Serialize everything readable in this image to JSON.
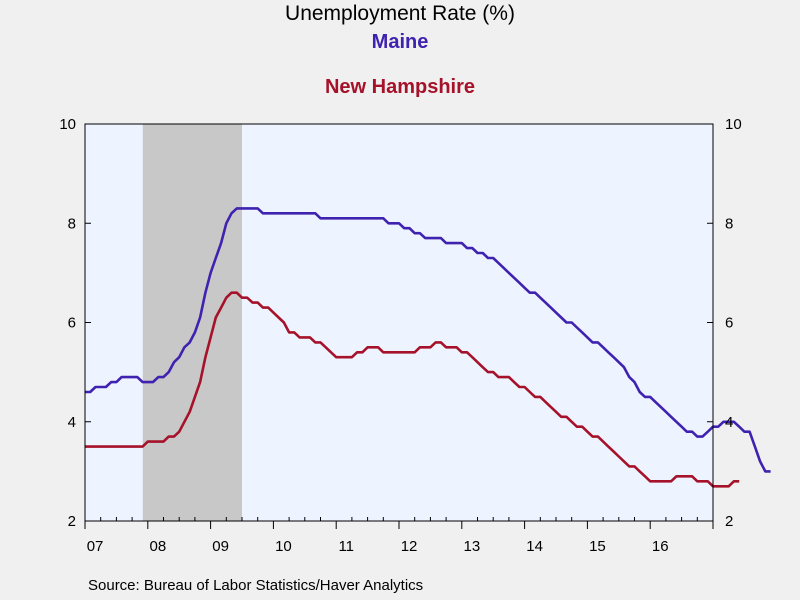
{
  "chart_data": {
    "type": "line",
    "title": "Unemployment Rate (%)",
    "source": "Source:  Bureau of Labor Statistics/Haver Analytics",
    "x_start_year": 2007,
    "x_range": [
      2007.0,
      2017.0
    ],
    "ylim": [
      2,
      10
    ],
    "y_ticks": [
      2,
      4,
      6,
      8,
      10
    ],
    "y_tick_labels": [
      "2",
      "4",
      "6",
      "8",
      "10"
    ],
    "x_tick_labels": [
      "07",
      "08",
      "09",
      "10",
      "11",
      "12",
      "13",
      "14",
      "15",
      "16"
    ],
    "grid": false,
    "recession_shading": {
      "start": 2007.92,
      "end": 2009.5,
      "color": "#c8c8c8"
    },
    "plot_background": "#eef4ff",
    "series": [
      {
        "name": "Maine",
        "color": "#3f22b0",
        "values": [
          4.6,
          4.6,
          4.7,
          4.7,
          4.7,
          4.8,
          4.8,
          4.9,
          4.9,
          4.9,
          4.9,
          4.8,
          4.8,
          4.8,
          4.9,
          4.9,
          5.0,
          5.2,
          5.3,
          5.5,
          5.6,
          5.8,
          6.1,
          6.6,
          7.0,
          7.3,
          7.6,
          8.0,
          8.2,
          8.3,
          8.3,
          8.3,
          8.3,
          8.3,
          8.2,
          8.2,
          8.2,
          8.2,
          8.2,
          8.2,
          8.2,
          8.2,
          8.2,
          8.2,
          8.2,
          8.1,
          8.1,
          8.1,
          8.1,
          8.1,
          8.1,
          8.1,
          8.1,
          8.1,
          8.1,
          8.1,
          8.1,
          8.1,
          8.0,
          8.0,
          8.0,
          7.9,
          7.9,
          7.8,
          7.8,
          7.7,
          7.7,
          7.7,
          7.7,
          7.6,
          7.6,
          7.6,
          7.6,
          7.5,
          7.5,
          7.4,
          7.4,
          7.3,
          7.3,
          7.2,
          7.1,
          7.0,
          6.9,
          6.8,
          6.7,
          6.6,
          6.6,
          6.5,
          6.4,
          6.3,
          6.2,
          6.1,
          6.0,
          6.0,
          5.9,
          5.8,
          5.7,
          5.6,
          5.6,
          5.5,
          5.4,
          5.3,
          5.2,
          5.1,
          4.9,
          4.8,
          4.6,
          4.5,
          4.5,
          4.4,
          4.3,
          4.2,
          4.1,
          4.0,
          3.9,
          3.8,
          3.8,
          3.7,
          3.7,
          3.8,
          3.9,
          3.9,
          4.0,
          4.0,
          4.0,
          3.9,
          3.8,
          3.8,
          3.5,
          3.2,
          3.0,
          3.0
        ]
      },
      {
        "name": "New Hampshire",
        "color": "#a5122a",
        "values": [
          3.5,
          3.5,
          3.5,
          3.5,
          3.5,
          3.5,
          3.5,
          3.5,
          3.5,
          3.5,
          3.5,
          3.5,
          3.6,
          3.6,
          3.6,
          3.6,
          3.7,
          3.7,
          3.8,
          4.0,
          4.2,
          4.5,
          4.8,
          5.3,
          5.7,
          6.1,
          6.3,
          6.5,
          6.6,
          6.6,
          6.5,
          6.5,
          6.4,
          6.4,
          6.3,
          6.3,
          6.2,
          6.1,
          6.0,
          5.8,
          5.8,
          5.7,
          5.7,
          5.7,
          5.6,
          5.6,
          5.5,
          5.4,
          5.3,
          5.3,
          5.3,
          5.3,
          5.4,
          5.4,
          5.5,
          5.5,
          5.5,
          5.4,
          5.4,
          5.4,
          5.4,
          5.4,
          5.4,
          5.4,
          5.5,
          5.5,
          5.5,
          5.6,
          5.6,
          5.5,
          5.5,
          5.5,
          5.4,
          5.4,
          5.3,
          5.2,
          5.1,
          5.0,
          5.0,
          4.9,
          4.9,
          4.9,
          4.8,
          4.7,
          4.7,
          4.6,
          4.5,
          4.5,
          4.4,
          4.3,
          4.2,
          4.1,
          4.1,
          4.0,
          3.9,
          3.9,
          3.8,
          3.7,
          3.7,
          3.6,
          3.5,
          3.4,
          3.3,
          3.2,
          3.1,
          3.1,
          3.0,
          2.9,
          2.8,
          2.8,
          2.8,
          2.8,
          2.8,
          2.9,
          2.9,
          2.9,
          2.9,
          2.8,
          2.8,
          2.8,
          2.7,
          2.7,
          2.7,
          2.7,
          2.8,
          2.8
        ]
      }
    ]
  }
}
